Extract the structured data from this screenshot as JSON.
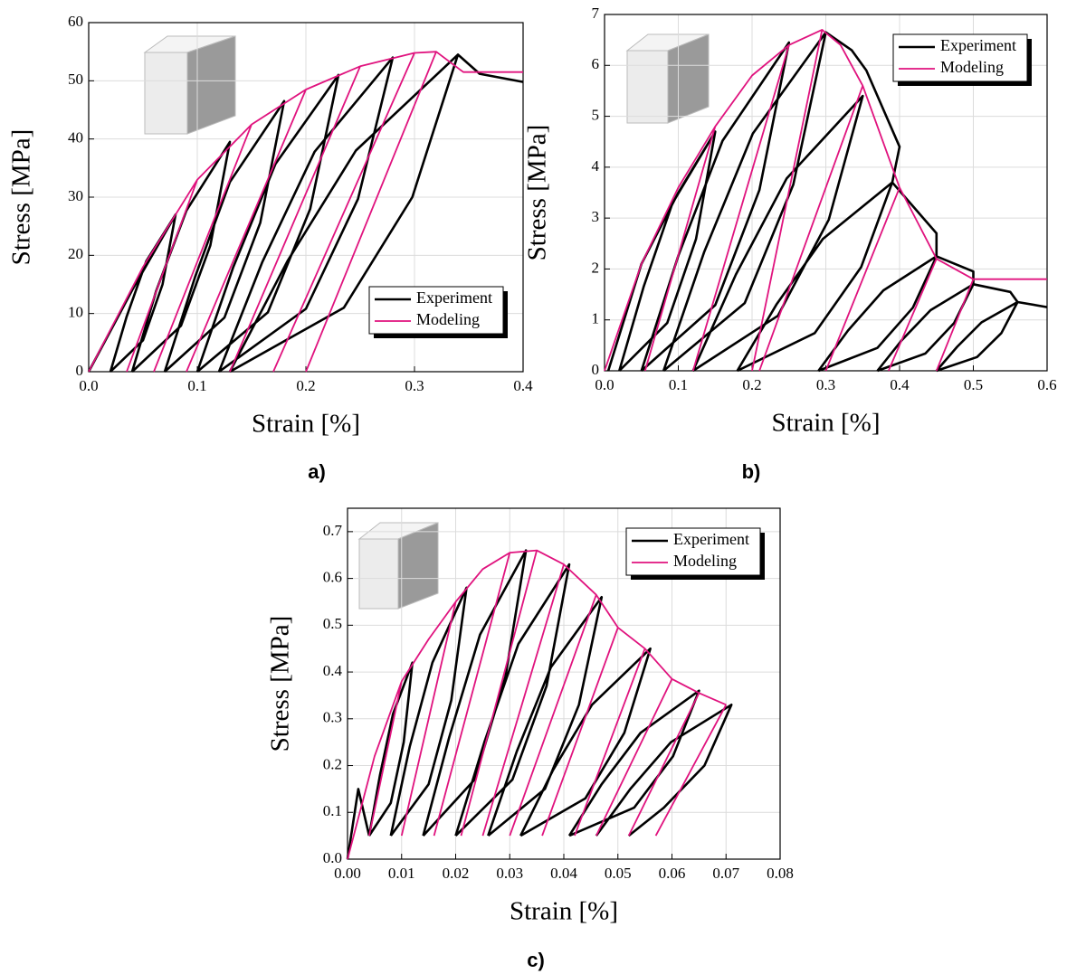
{
  "chart_data": [
    {
      "type": "line",
      "panel_label": "a)",
      "xlabel": "Strain [%]",
      "ylabel": "Stress [MPa]",
      "grid": true,
      "legend": "lower right",
      "xlim": [
        0,
        0.4
      ],
      "ylim": [
        0,
        60
      ],
      "xticks": [
        {
          "value": 0,
          "label": "0.0"
        },
        {
          "value": 0.1,
          "label": "0.1"
        },
        {
          "value": 0.2,
          "label": "0.2"
        },
        {
          "value": 0.3,
          "label": "0.3"
        },
        {
          "value": 0.4,
          "label": "0.4"
        }
      ],
      "yticks": [
        0,
        10,
        20,
        30,
        40,
        50,
        60
      ],
      "series": [
        {
          "name": "Experiment",
          "color": "#000000",
          "x": [
            0,
            0.04,
            0.08,
            null,
            0.02,
            0.035,
            0.053,
            0.08,
            0.068,
            0.05,
            0.02,
            null,
            0.04,
            0.062,
            0.09,
            0.13,
            0.112,
            0.085,
            0.04,
            null,
            0.07,
            0.098,
            0.13,
            0.18,
            0.158,
            0.125,
            0.07,
            null,
            0.1,
            0.133,
            0.172,
            0.23,
            0.204,
            0.165,
            0.1,
            null,
            0.12,
            0.16,
            0.208,
            0.28,
            0.248,
            0.2,
            0.12,
            null,
            0.13,
            0.183,
            0.246,
            0.34,
            0.298,
            0.235,
            0.13,
            null,
            0.34,
            0.36,
            0.4
          ],
          "y": [
            0,
            14,
            27,
            null,
            0,
            9.5,
            19,
            27,
            15,
            5.4,
            0,
            null,
            0,
            13.8,
            27.7,
            39.5,
            21.7,
            7.9,
            0,
            null,
            0,
            16.3,
            32.6,
            46.5,
            25.6,
            9.3,
            0,
            null,
            0,
            17.9,
            35.7,
            51,
            28,
            10.2,
            0,
            null,
            0,
            18.9,
            37.8,
            54,
            29.7,
            10.8,
            0,
            null,
            0,
            19,
            38,
            54.5,
            30,
            11,
            0,
            null,
            54.5,
            51.2,
            49.8
          ]
        },
        {
          "name": "Modeling",
          "color": "#e0137e",
          "x": [
            0,
            0.05,
            0.1,
            0.15,
            0.2,
            0.25,
            0.3,
            0.32,
            0.345,
            0.4,
            null,
            0.1,
            0.035,
            null,
            0.15,
            0.06,
            null,
            0.2,
            0.09,
            null,
            0.25,
            0.13,
            null,
            0.3,
            0.17,
            null,
            0.32,
            0.2
          ],
          "y": [
            0,
            18,
            33,
            42.5,
            48.5,
            52.5,
            54.8,
            55,
            51.5,
            51.5,
            null,
            33,
            0,
            null,
            42.5,
            0,
            null,
            48.5,
            0,
            null,
            52.5,
            0,
            null,
            54.8,
            0,
            null,
            55,
            0
          ]
        }
      ]
    },
    {
      "type": "line",
      "panel_label": "b)",
      "xlabel": "Strain [%]",
      "ylabel": "Stress [MPa]",
      "grid": true,
      "legend": "upper right",
      "xlim": [
        0,
        0.6
      ],
      "ylim": [
        0,
        7
      ],
      "xticks": [
        {
          "value": 0,
          "label": "0.0"
        },
        {
          "value": 0.1,
          "label": "0.1"
        },
        {
          "value": 0.2,
          "label": "0.2"
        },
        {
          "value": 0.3,
          "label": "0.3"
        },
        {
          "value": 0.4,
          "label": "0.4"
        },
        {
          "value": 0.5,
          "label": "0.5"
        },
        {
          "value": 0.6,
          "label": "0.6"
        }
      ],
      "yticks": [
        0,
        1,
        2,
        3,
        4,
        5,
        6,
        7
      ],
      "series": [
        {
          "name": "Experiment",
          "color": "#000000",
          "x": [
            0.005,
            0.05,
            0.1,
            0.15,
            null,
            0.02,
            0.053,
            0.092,
            0.15,
            0.124,
            0.085,
            0.02,
            null,
            0.05,
            0.1,
            0.16,
            0.25,
            0.21,
            0.15,
            0.05,
            null,
            0.08,
            0.135,
            0.201,
            0.3,
            0.256,
            0.19,
            0.08,
            null,
            0.12,
            0.178,
            0.247,
            0.35,
            0.304,
            0.235,
            0.12,
            null,
            0.18,
            0.233,
            0.296,
            0.39,
            0.348,
            0.285,
            0.18,
            null,
            0.29,
            0.33,
            0.378,
            0.45,
            0.418,
            0.37,
            0.29,
            null,
            0.37,
            0.403,
            0.442,
            0.5,
            0.474,
            0.435,
            0.37,
            null,
            0.45,
            0.478,
            0.511,
            0.56,
            0.538,
            0.505,
            0.45,
            null,
            0.3,
            0.335,
            0.355,
            0.4,
            0.39,
            0.45,
            0.45,
            0.5,
            0.5,
            0.55,
            0.56,
            0.6
          ],
          "y": [
            0,
            2.1,
            3.5,
            4.7,
            null,
            0,
            1.65,
            3.29,
            4.7,
            2.59,
            0.94,
            0,
            null,
            0,
            2.26,
            4.52,
            6.45,
            3.55,
            1.29,
            0,
            null,
            0,
            2.33,
            4.66,
            6.65,
            3.66,
            1.33,
            0,
            null,
            0,
            1.89,
            3.78,
            5.4,
            2.97,
            1.08,
            0,
            null,
            0,
            1.3,
            2.59,
            3.7,
            2.04,
            0.74,
            0,
            null,
            0,
            0.79,
            1.58,
            2.25,
            1.24,
            0.45,
            0,
            null,
            0,
            0.6,
            1.19,
            1.7,
            0.94,
            0.34,
            0,
            null,
            0,
            0.47,
            0.95,
            1.35,
            0.74,
            0.27,
            0,
            null,
            6.65,
            6.3,
            5.9,
            4.4,
            3.7,
            2.7,
            2.25,
            1.95,
            1.7,
            1.55,
            1.35,
            1.25
          ]
        },
        {
          "name": "Modeling",
          "color": "#e0137e",
          "x": [
            0,
            0.05,
            0.1,
            0.15,
            0.2,
            0.25,
            0.295,
            0.32,
            0.35,
            0.4,
            0.45,
            0.5,
            0.6,
            null,
            0.15,
            0.055,
            null,
            0.25,
            0.12,
            null,
            0.295,
            0.2,
            null,
            0.35,
            0.21,
            null,
            0.4,
            0.3,
            null,
            0.45,
            0.385,
            null,
            0.5,
            0.45
          ],
          "y": [
            0,
            2.1,
            3.6,
            4.8,
            5.8,
            6.4,
            6.7,
            6.4,
            5.6,
            3.6,
            2.2,
            1.8,
            1.8,
            null,
            4.8,
            0,
            null,
            6.4,
            0,
            null,
            6.7,
            0,
            null,
            5.6,
            0,
            null,
            3.6,
            0,
            null,
            2.2,
            0,
            null,
            1.8,
            0
          ]
        }
      ]
    },
    {
      "type": "line",
      "panel_label": "c)",
      "xlabel": "Strain [%]",
      "ylabel": "Stress [MPa]",
      "grid": true,
      "legend": "upper right",
      "xlim": [
        0,
        0.08
      ],
      "ylim": [
        0,
        0.75
      ],
      "xticks": [
        {
          "value": 0,
          "label": "0.00"
        },
        {
          "value": 0.01,
          "label": "0.01"
        },
        {
          "value": 0.02,
          "label": "0.02"
        },
        {
          "value": 0.03,
          "label": "0.03"
        },
        {
          "value": 0.04,
          "label": "0.04"
        },
        {
          "value": 0.05,
          "label": "0.05"
        },
        {
          "value": 0.06,
          "label": "0.06"
        },
        {
          "value": 0.07,
          "label": "0.07"
        },
        {
          "value": 0.08,
          "label": "0.08"
        }
      ],
      "yticks": [
        {
          "value": 0,
          "label": "0.0"
        },
        {
          "value": 0.1,
          "label": "0.1"
        },
        {
          "value": 0.2,
          "label": "0.2"
        },
        {
          "value": 0.3,
          "label": "0.3"
        },
        {
          "value": 0.4,
          "label": "0.4"
        },
        {
          "value": 0.5,
          "label": "0.5"
        },
        {
          "value": 0.6,
          "label": "0.6"
        },
        {
          "value": 0.7,
          "label": "0.7"
        }
      ],
      "series": [
        {
          "name": "Experiment",
          "color": "#000000",
          "x": [
            0,
            0.002,
            0.004,
            null,
            0.004,
            0.006,
            0.0084,
            0.012,
            0.0104,
            0.008,
            0.004,
            null,
            0.008,
            0.0115,
            0.0157,
            0.022,
            0.0192,
            0.015,
            0.008,
            null,
            0.014,
            0.0188,
            0.0245,
            0.033,
            0.0292,
            0.0235,
            0.014,
            null,
            0.02,
            0.0253,
            0.0316,
            0.041,
            0.0368,
            0.0305,
            0.02,
            null,
            0.026,
            0.0313,
            0.0376,
            0.047,
            0.0428,
            0.0365,
            0.026,
            null,
            0.032,
            0.038,
            0.0452,
            0.056,
            0.0512,
            0.044,
            0.032,
            null,
            0.041,
            0.047,
            0.0542,
            0.065,
            0.0602,
            0.053,
            0.041,
            null,
            0.046,
            0.0523,
            0.0598,
            0.071,
            0.066,
            0.0585,
            0.052
          ],
          "y": [
            0,
            0.15,
            0.05,
            null,
            0.05,
            0.18,
            0.31,
            0.42,
            0.25,
            0.12,
            0.05,
            null,
            0.05,
            0.24,
            0.42,
            0.58,
            0.34,
            0.16,
            0.05,
            null,
            0.05,
            0.26,
            0.48,
            0.66,
            0.39,
            0.17,
            0.05,
            null,
            0.05,
            0.25,
            0.46,
            0.63,
            0.37,
            0.17,
            0.05,
            null,
            0.05,
            0.23,
            0.41,
            0.56,
            0.33,
            0.15,
            0.05,
            null,
            0.05,
            0.19,
            0.33,
            0.45,
            0.27,
            0.13,
            0.05,
            null,
            0.05,
            0.16,
            0.27,
            0.36,
            0.22,
            0.11,
            0.05,
            null,
            0.05,
            0.15,
            0.25,
            0.33,
            0.2,
            0.11,
            0.05
          ]
        },
        {
          "name": "Modeling",
          "color": "#e0137e",
          "x": [
            0,
            0.005,
            0.01,
            0.015,
            0.02,
            0.025,
            0.03,
            0.035,
            0.04,
            0.046,
            0.05,
            0.055,
            0.06,
            0.065,
            0.07,
            null,
            0.01,
            0.004,
            null,
            0.02,
            0.01,
            null,
            0.03,
            0.016,
            null,
            0.035,
            0.021,
            null,
            0.04,
            0.025,
            null,
            0.046,
            0.03,
            null,
            0.05,
            0.036,
            null,
            0.055,
            0.042,
            null,
            0.06,
            0.046,
            null,
            0.065,
            0.052,
            null,
            0.07,
            0.057
          ],
          "y": [
            0,
            0.22,
            0.38,
            0.47,
            0.55,
            0.62,
            0.655,
            0.66,
            0.63,
            0.565,
            0.495,
            0.45,
            0.385,
            0.355,
            0.33,
            null,
            0.38,
            0.05,
            null,
            0.55,
            0.05,
            null,
            0.655,
            0.05,
            null,
            0.66,
            0.05,
            null,
            0.63,
            0.05,
            null,
            0.565,
            0.05,
            null,
            0.495,
            0.05,
            null,
            0.45,
            0.05,
            null,
            0.385,
            0.05,
            null,
            0.355,
            0.05,
            null,
            0.33,
            0.05
          ]
        }
      ]
    }
  ]
}
